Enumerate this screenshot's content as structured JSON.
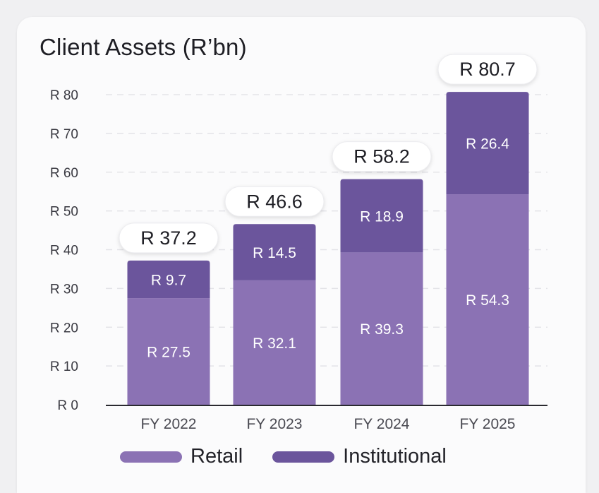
{
  "chart_data": {
    "type": "bar",
    "stacked": true,
    "title": "Client Assets (R’bn)",
    "categories": [
      "FY 2022",
      "FY 2023",
      "FY 2024",
      "FY 2025"
    ],
    "series": [
      {
        "name": "Retail",
        "color": "#8b72b4",
        "values": [
          27.5,
          32.1,
          39.3,
          54.3
        ],
        "labels": [
          "R 27.5",
          "R 32.1",
          "R 39.3",
          "R 54.3"
        ]
      },
      {
        "name": "Institutional",
        "color": "#6b559c",
        "values": [
          9.7,
          14.5,
          18.9,
          26.4
        ],
        "labels": [
          "R 9.7",
          "R 14.5",
          "R 18.9",
          "R 26.4"
        ]
      }
    ],
    "totals": [
      37.2,
      46.6,
      58.2,
      80.7
    ],
    "total_labels": [
      "R 37.2",
      "R 46.6",
      "R 58.2",
      "R 80.7"
    ],
    "ylim": [
      0,
      80
    ],
    "yticks": [
      0,
      10,
      20,
      30,
      40,
      50,
      60,
      70,
      80
    ],
    "ytick_labels": [
      "R 0",
      "R 10",
      "R 20",
      "R 30",
      "R 40",
      "R 50",
      "R 60",
      "R 70",
      "R 80"
    ],
    "grid": true,
    "legend_position": "bottom"
  }
}
